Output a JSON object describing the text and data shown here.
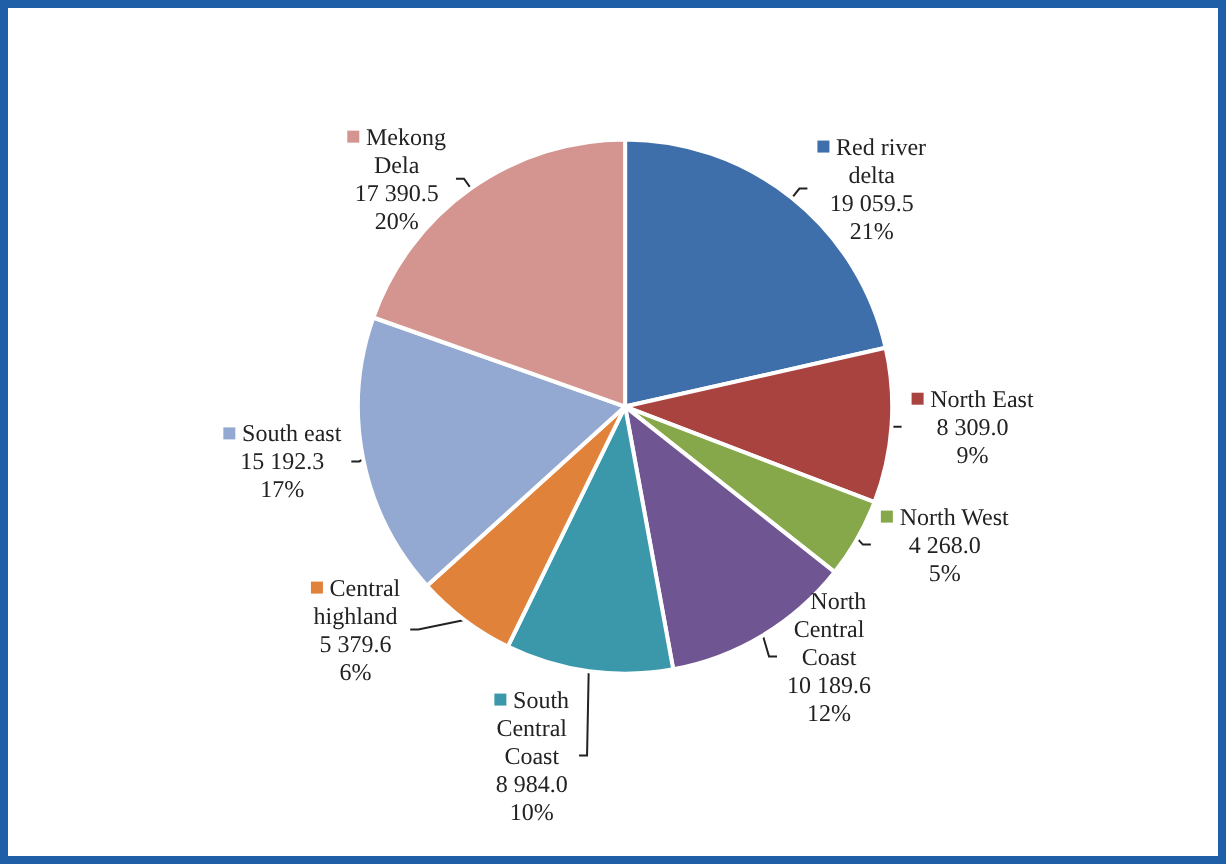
{
  "chart_data": {
    "type": "pie",
    "categories": [
      "Red river delta",
      "North East",
      "North West",
      "North Central Coast",
      "South Central Coast",
      "Central highland",
      "South east",
      "Mekong Dela"
    ],
    "values": [
      19059.5,
      8309.0,
      4268.0,
      10189.6,
      8984.0,
      5379.6,
      15192.3,
      17390.5
    ],
    "value_labels": [
      "19 059.5\n21%",
      "8 309.0\n9%",
      "4 268.0\n5%",
      "10 189.6\n12%",
      "8 984.0\n10%",
      "5 379.6\n6%",
      "15 192.3\n17%",
      "17 390.5\n20%"
    ],
    "colors": [
      "#3f6faa",
      "#a94340",
      "#86a84a",
      "#6f5592",
      "#3b98aa",
      "#e0823a",
      "#93a9d2",
      "#d49490"
    ],
    "legend": "right"
  }
}
